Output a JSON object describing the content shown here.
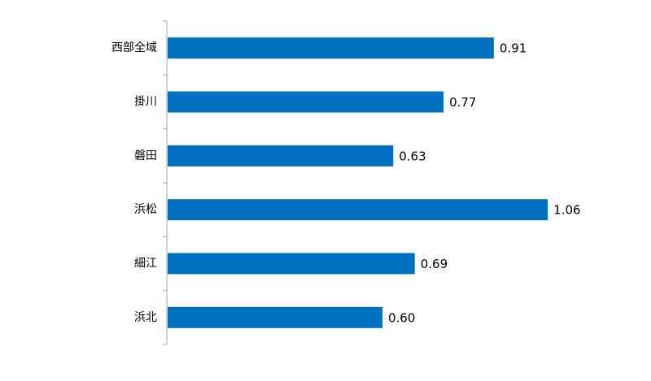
{
  "chart_data": {
    "type": "bar",
    "orientation": "horizontal",
    "categories": [
      "西部全域",
      "掛川",
      "磐田",
      "浜松",
      "細江",
      "浜北"
    ],
    "values": [
      0.91,
      0.77,
      0.63,
      1.06,
      0.69,
      0.6
    ],
    "value_labels": [
      "0.91",
      "0.77",
      "0.63",
      "1.06",
      "0.69",
      "0.60"
    ],
    "bar_color": "#0070C0",
    "axis_color": "#A6A6A6",
    "xlim": [
      0,
      1.2
    ],
    "grid": false,
    "legend": "none"
  }
}
